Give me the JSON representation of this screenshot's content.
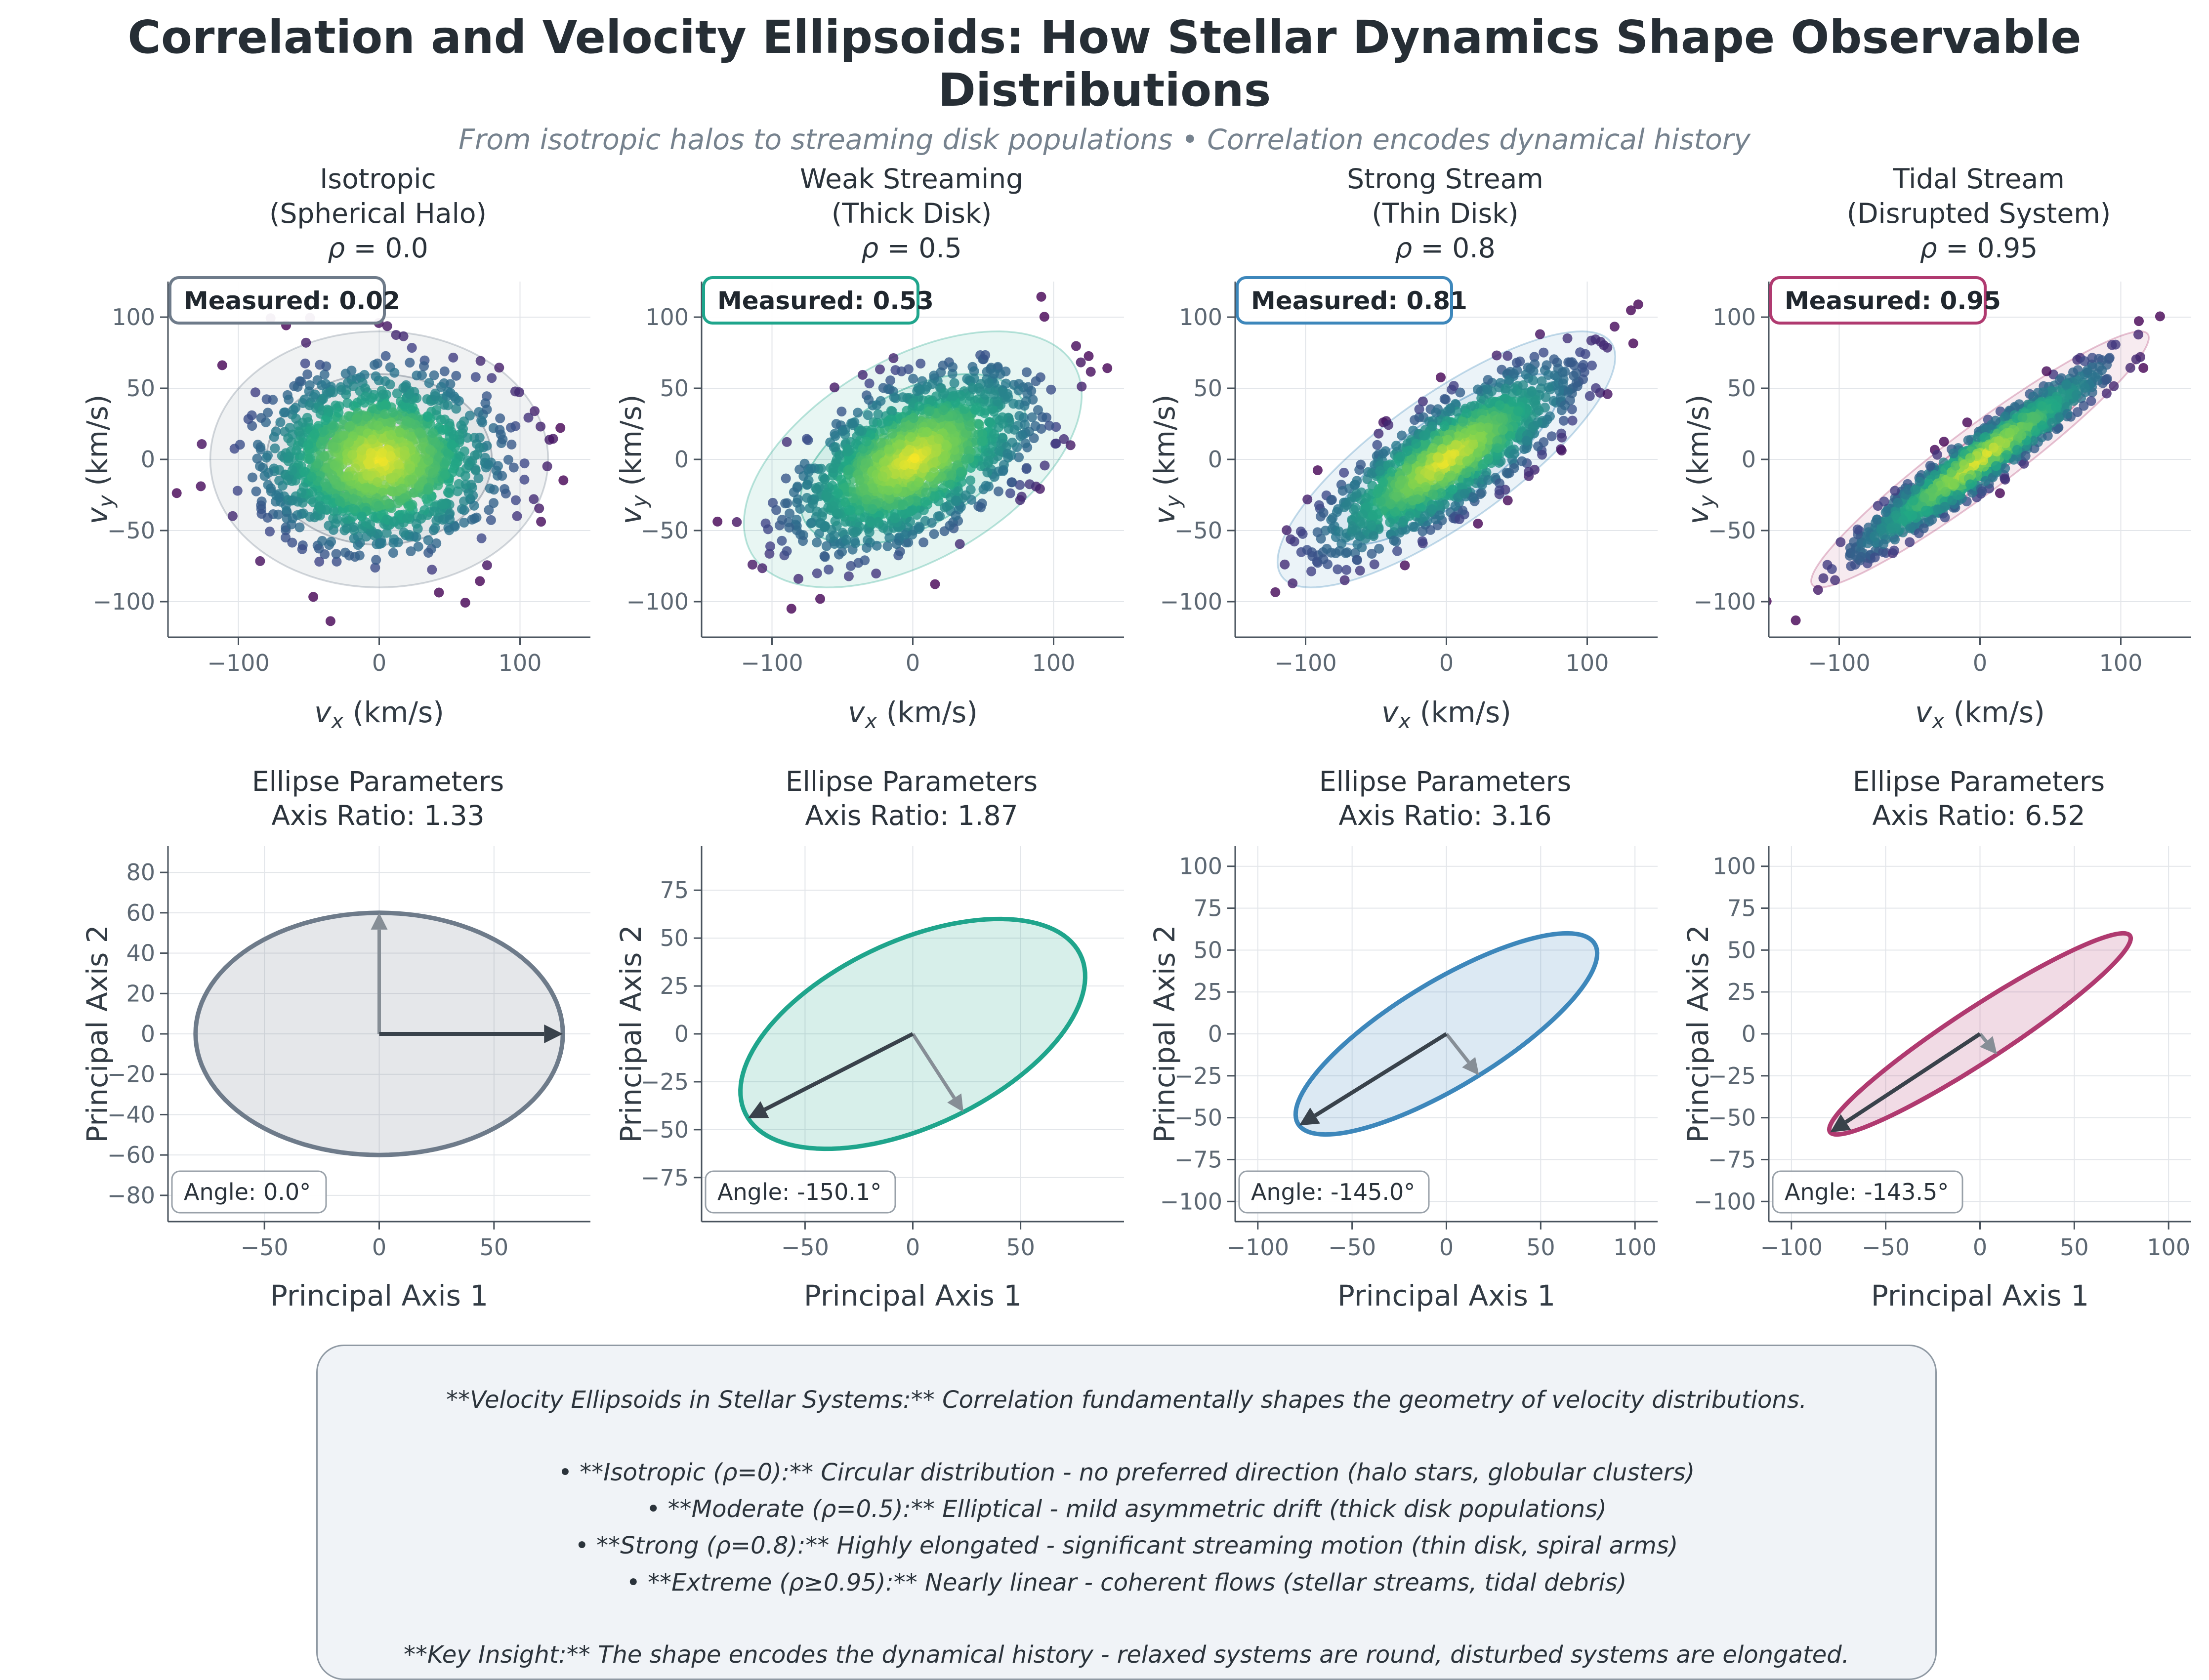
{
  "chart_data": {
    "type": "scatter",
    "figure": {
      "suptitle": "Correlation and Velocity Ellipsoids: How Stellar Dynamics Shape Observable Distributions",
      "subtitle": "From isotropic halos to streaming disk populations • Correlation encodes dynamical history"
    },
    "velocity_plots": {
      "xlabel": {
        "base": "v",
        "sub": "x",
        "unit": " (km/s)"
      },
      "ylabel": {
        "base": "v",
        "sub": "y",
        "unit": " (km/s)"
      },
      "xlim": [
        -150,
        150
      ],
      "ylim": [
        -125,
        125
      ],
      "xticks": [
        -100,
        0,
        100
      ],
      "yticks": [
        100,
        50,
        0,
        -50,
        -100
      ],
      "n_points": 1400,
      "sigma_x": 40,
      "sigma_y": 30,
      "confidence_levels": [
        1,
        2,
        3
      ],
      "grid": true,
      "point_colormap": "viridis"
    },
    "ellipse_plots": {
      "title_line1": "Ellipse Parameters",
      "xlabel": "Principal Axis 1",
      "ylabel": "Principal Axis 2",
      "grid": true
    },
    "panels": [
      {
        "name": "Isotropic",
        "context": "(Spherical Halo)",
        "rho_label": "ρ = 0.0",
        "rho": 0.0,
        "measured": "Measured: 0.02",
        "measured_value": 0.02,
        "color": "#6e7b8a",
        "axis_ratio_label": "Axis Ratio: 1.33",
        "axis_ratio": 1.33,
        "angle_label": "Angle: 0.0°",
        "angle_deg": 0.0,
        "semi_major": 80,
        "semi_minor": 60,
        "ellipse_xlim": [
          -92,
          92
        ],
        "ellipse_ylim": [
          -93,
          93
        ],
        "ellipse_xticks": [
          -50,
          0,
          50
        ],
        "ellipse_yticks": [
          80,
          60,
          40,
          20,
          0,
          -20,
          -40,
          -60,
          -80
        ],
        "seed": 7
      },
      {
        "name": "Weak Streaming",
        "context": "(Thick Disk)",
        "rho_label": "ρ = 0.5",
        "rho": 0.5,
        "measured": "Measured: 0.53",
        "measured_value": 0.53,
        "color": "#1fa58c",
        "axis_ratio_label": "Axis Ratio: 1.87",
        "axis_ratio": 1.87,
        "angle_label": "Angle: -150.1°",
        "angle_deg": -150.1,
        "semi_major": 88.2,
        "semi_minor": 47.1,
        "ellipse_xlim": [
          -98,
          98
        ],
        "ellipse_ylim": [
          -98,
          98
        ],
        "ellipse_xticks": [
          -50,
          0,
          50
        ],
        "ellipse_yticks": [
          75,
          50,
          25,
          0,
          -25,
          -50,
          -75
        ],
        "seed": 11
      },
      {
        "name": "Strong Stream",
        "context": "(Thin Disk)",
        "rho_label": "ρ = 0.8",
        "rho": 0.8,
        "measured": "Measured: 0.81",
        "measured_value": 0.81,
        "color": "#3d87bb",
        "axis_ratio_label": "Axis Ratio: 3.16",
        "axis_ratio": 3.16,
        "angle_label": "Angle: -145.0°",
        "angle_deg": -145.0,
        "semi_major": 95.3,
        "semi_minor": 30.2,
        "ellipse_xlim": [
          -112,
          112
        ],
        "ellipse_ylim": [
          -112,
          112
        ],
        "ellipse_xticks": [
          -100,
          -50,
          0,
          50,
          100
        ],
        "ellipse_yticks": [
          100,
          75,
          50,
          25,
          0,
          -25,
          -50,
          -75,
          -100
        ],
        "seed": 23
      },
      {
        "name": "Tidal Stream",
        "context": "(Disrupted System)",
        "rho_label": "ρ = 0.95",
        "rho": 0.95,
        "measured": "Measured: 0.95",
        "measured_value": 0.95,
        "color": "#b03a70",
        "axis_ratio_label": "Axis Ratio: 6.52",
        "axis_ratio": 6.52,
        "angle_label": "Angle: -143.5°",
        "angle_deg": -143.5,
        "semi_major": 98.8,
        "semi_minor": 15.2,
        "ellipse_xlim": [
          -112,
          112
        ],
        "ellipse_ylim": [
          -112,
          112
        ],
        "ellipse_xticks": [
          -100,
          -50,
          0,
          50,
          100
        ],
        "ellipse_yticks": [
          100,
          75,
          50,
          25,
          0,
          -25,
          -50,
          -75,
          -100
        ],
        "seed": 5
      }
    ]
  },
  "info_box": {
    "paragraphs": [
      [
        "**Velocity Ellipsoids in Stellar Systems:** Correlation fundamentally shapes the geometry of velocity distributions."
      ],
      [
        "• **Isotropic (ρ=0):** Circular distribution - no preferred direction (halo stars, globular clusters)",
        "• **Moderate (ρ=0.5):** Elliptical - mild asymmetric drift (thick disk populations)",
        "• **Strong (ρ=0.8):** Highly elongated - significant streaming motion (thin disk, spiral arms)",
        "• **Extreme (ρ≥0.95):** Nearly linear - coherent flows (stellar streams, tidal debris)"
      ],
      [
        "**Key Insight:** The shape encodes the dynamical history - relaxed systems are round, disturbed systems are elongated."
      ]
    ]
  },
  "style_colors": {
    "grid": "#e3e6ea",
    "spine": "#49535d",
    "tick_label": "#5d6873",
    "axis_label": "#333c45",
    "arrow_major": "#39424b",
    "arrow_minor": "#868e96",
    "badge_border_gray": "#99a1a9",
    "info_bg": "#f0f3f7"
  }
}
